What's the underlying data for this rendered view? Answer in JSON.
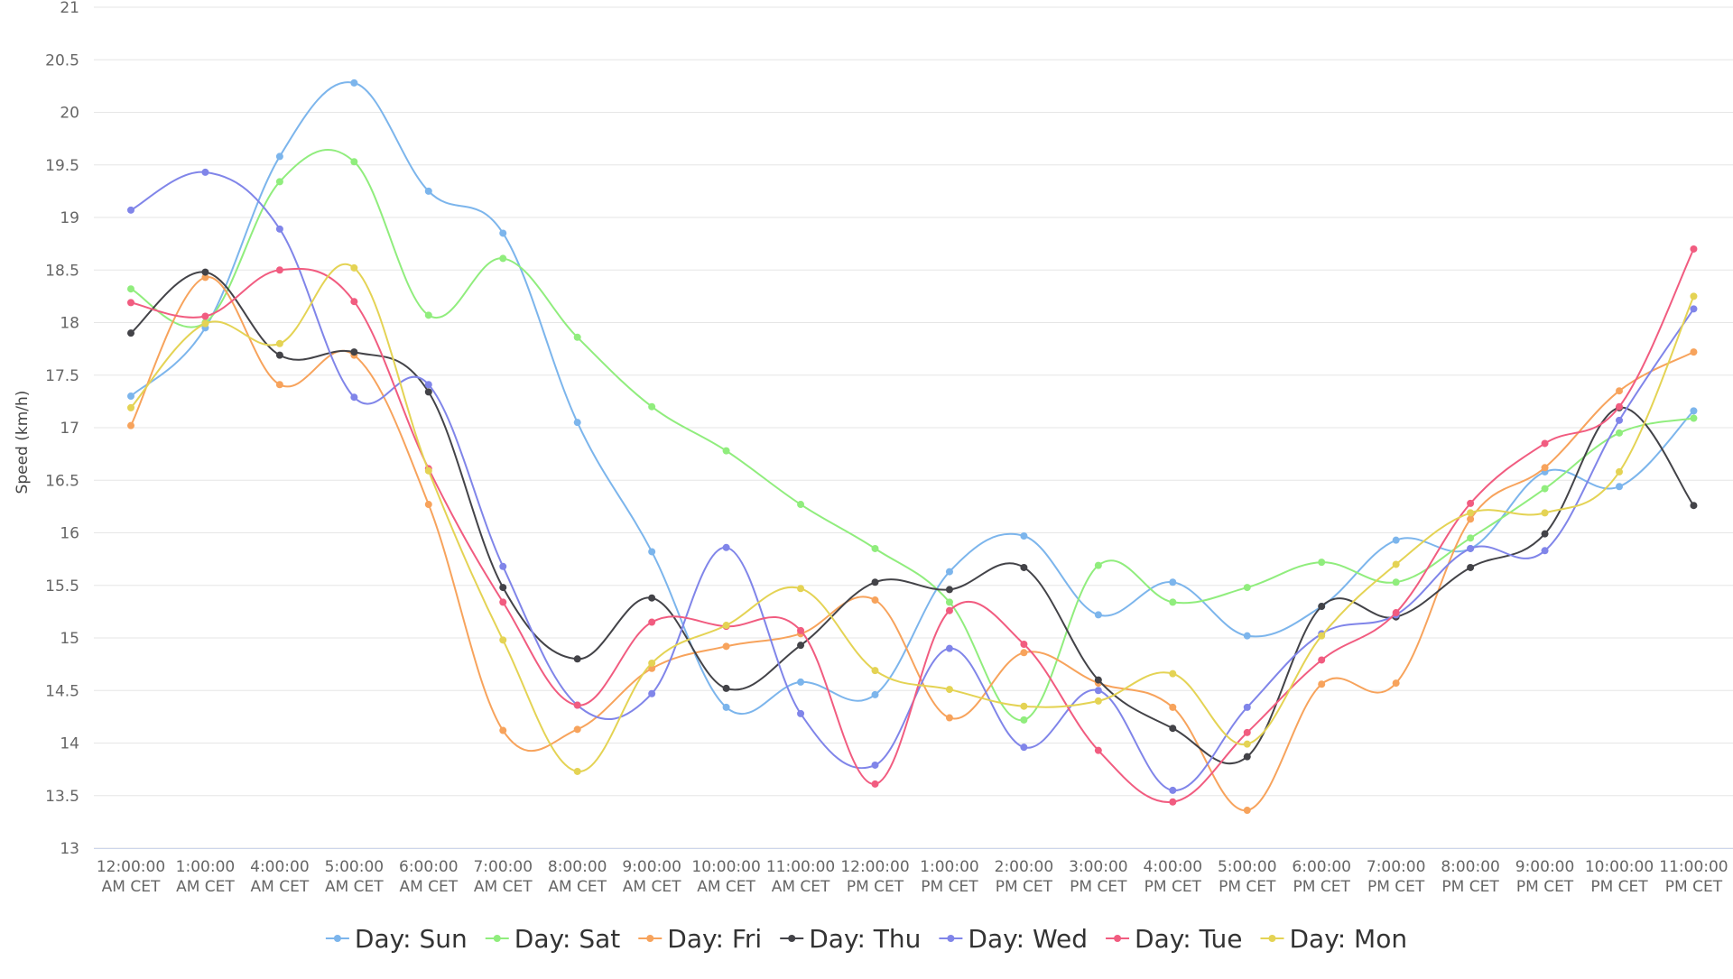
{
  "chart_data": {
    "type": "line",
    "title": "",
    "xlabel": "",
    "ylabel": "Speed (km/h)",
    "ylim": [
      13,
      21
    ],
    "yticks": [
      "13",
      "13.5",
      "14",
      "14.5",
      "15",
      "15.5",
      "16",
      "16.5",
      "17",
      "17.5",
      "18",
      "18.5",
      "19",
      "19.5",
      "20",
      "20.5",
      "21"
    ],
    "categories": [
      {
        "line1": "12:00:00",
        "line2": "AM CET"
      },
      {
        "line1": "1:00:00",
        "line2": "AM CET"
      },
      {
        "line1": "4:00:00",
        "line2": "AM CET"
      },
      {
        "line1": "5:00:00",
        "line2": "AM CET"
      },
      {
        "line1": "6:00:00",
        "line2": "AM CET"
      },
      {
        "line1": "7:00:00",
        "line2": "AM CET"
      },
      {
        "line1": "8:00:00",
        "line2": "AM CET"
      },
      {
        "line1": "9:00:00",
        "line2": "AM CET"
      },
      {
        "line1": "10:00:00",
        "line2": "AM CET"
      },
      {
        "line1": "11:00:00",
        "line2": "AM CET"
      },
      {
        "line1": "12:00:00",
        "line2": "PM CET"
      },
      {
        "line1": "1:00:00",
        "line2": "PM CET"
      },
      {
        "line1": "2:00:00",
        "line2": "PM CET"
      },
      {
        "line1": "3:00:00",
        "line2": "PM CET"
      },
      {
        "line1": "4:00:00",
        "line2": "PM CET"
      },
      {
        "line1": "5:00:00",
        "line2": "PM CET"
      },
      {
        "line1": "6:00:00",
        "line2": "PM CET"
      },
      {
        "line1": "7:00:00",
        "line2": "PM CET"
      },
      {
        "line1": "8:00:00",
        "line2": "PM CET"
      },
      {
        "line1": "9:00:00",
        "line2": "PM CET"
      },
      {
        "line1": "10:00:00",
        "line2": "PM CET"
      },
      {
        "line1": "11:00:00",
        "line2": "PM CET"
      }
    ],
    "series": [
      {
        "name": "Day: Sun",
        "color": "#7cb5ec",
        "values": [
          17.3,
          17.95,
          19.58,
          20.28,
          19.25,
          18.85,
          17.05,
          15.82,
          14.34,
          14.58,
          14.46,
          15.63,
          15.97,
          15.22,
          15.53,
          15.02,
          15.3,
          15.93,
          15.85,
          16.58,
          16.44,
          17.16
        ]
      },
      {
        "name": "Day: Sat",
        "color": "#90ed7d",
        "values": [
          18.32,
          18.0,
          19.34,
          19.53,
          18.07,
          18.61,
          17.86,
          17.2,
          16.78,
          16.27,
          15.85,
          15.34,
          14.22,
          15.69,
          15.34,
          15.48,
          15.72,
          15.53,
          15.95,
          16.42,
          16.95,
          17.09
        ]
      },
      {
        "name": "Day: Fri",
        "color": "#f7a35c",
        "values": [
          17.02,
          18.43,
          17.41,
          17.69,
          16.27,
          14.12,
          14.13,
          14.71,
          14.92,
          15.04,
          15.36,
          14.24,
          14.86,
          14.57,
          14.34,
          13.36,
          14.56,
          14.57,
          16.13,
          16.62,
          17.35,
          17.72
        ]
      },
      {
        "name": "Day: Thu",
        "color": "#434348",
        "values": [
          17.9,
          18.48,
          17.69,
          17.72,
          17.34,
          15.48,
          14.8,
          15.38,
          14.52,
          14.93,
          15.53,
          15.46,
          15.67,
          14.6,
          14.14,
          13.87,
          15.3,
          15.2,
          15.67,
          15.99,
          17.19,
          16.26
        ]
      },
      {
        "name": "Day: Wed",
        "color": "#8085e9",
        "values": [
          19.07,
          19.43,
          18.89,
          17.29,
          17.41,
          15.68,
          14.36,
          14.47,
          15.86,
          14.28,
          13.79,
          14.9,
          13.96,
          14.5,
          13.55,
          14.34,
          15.04,
          15.22,
          15.85,
          15.83,
          17.07,
          18.13
        ]
      },
      {
        "name": "Day: Tue",
        "color": "#f15c80",
        "values": [
          18.19,
          18.06,
          18.5,
          18.2,
          16.61,
          15.34,
          14.36,
          15.15,
          15.11,
          15.07,
          13.61,
          15.26,
          14.94,
          13.93,
          13.44,
          14.1,
          14.79,
          15.24,
          16.28,
          16.85,
          17.2,
          18.7
        ]
      },
      {
        "name": "Day: Mon",
        "color": "#e4d354",
        "values": [
          17.19,
          17.99,
          17.8,
          18.52,
          16.59,
          14.98,
          13.73,
          14.76,
          15.12,
          15.47,
          14.69,
          14.51,
          14.35,
          14.4,
          14.66,
          13.99,
          15.02,
          15.7,
          16.19,
          16.19,
          16.58,
          18.25
        ]
      }
    ],
    "grid": true,
    "legend": "bottom-center"
  }
}
